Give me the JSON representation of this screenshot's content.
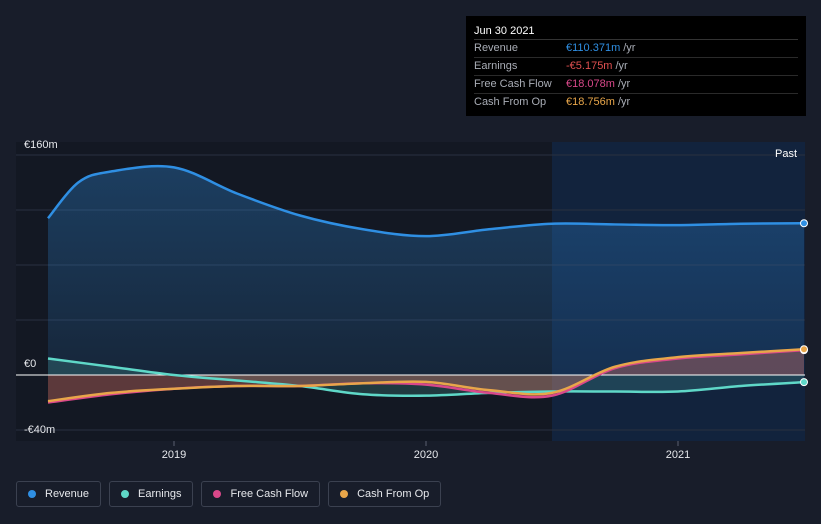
{
  "tooltip": {
    "date": "Jun 30 2021",
    "rows": [
      {
        "label": "Revenue",
        "value": "€110.371m",
        "unit": "/yr",
        "color": "#2f8fe3"
      },
      {
        "label": "Earnings",
        "value": "-€5.175m",
        "unit": "/yr",
        "color": "#e05050"
      },
      {
        "label": "Free Cash Flow",
        "value": "€18.078m",
        "unit": "/yr",
        "color": "#d9488a"
      },
      {
        "label": "Cash From Op",
        "value": "€18.756m",
        "unit": "/yr",
        "color": "#e8a64a"
      }
    ]
  },
  "past_label": "Past",
  "legend": [
    {
      "label": "Revenue",
      "color": "#2f8fe3"
    },
    {
      "label": "Earnings",
      "color": "#5fd8c8"
    },
    {
      "label": "Free Cash Flow",
      "color": "#d9488a"
    },
    {
      "label": "Cash From Op",
      "color": "#e8a64a"
    }
  ],
  "chart_data": {
    "type": "line",
    "ylim": [
      -40,
      160
    ],
    "y_tick_labels": [
      {
        "value": 160,
        "label": "€160m"
      },
      {
        "value": 0,
        "label": "€0"
      },
      {
        "value": -40,
        "label": "-€40m"
      }
    ],
    "x_tick_labels": [
      {
        "value": 2019.0,
        "label": "2019"
      },
      {
        "value": 2020.0,
        "label": "2020"
      },
      {
        "value": 2021.0,
        "label": "2021"
      }
    ],
    "xlim": [
      2018.5,
      2021.5
    ],
    "past_region_start": 2020.5,
    "series": [
      {
        "name": "Revenue",
        "color": "#2f8fe3",
        "points": [
          [
            2018.5,
            114
          ],
          [
            2018.62,
            140
          ],
          [
            2018.75,
            148
          ],
          [
            2019.0,
            151
          ],
          [
            2019.25,
            132
          ],
          [
            2019.5,
            116
          ],
          [
            2019.75,
            106
          ],
          [
            2020.0,
            101
          ],
          [
            2020.25,
            106
          ],
          [
            2020.5,
            110
          ],
          [
            2020.75,
            109.5
          ],
          [
            2021.0,
            109
          ],
          [
            2021.25,
            110
          ],
          [
            2021.5,
            110.371
          ]
        ]
      },
      {
        "name": "Earnings",
        "color": "#5fd8c8",
        "points": [
          [
            2018.5,
            12
          ],
          [
            2018.75,
            6
          ],
          [
            2019.0,
            0
          ],
          [
            2019.25,
            -4
          ],
          [
            2019.5,
            -8
          ],
          [
            2019.75,
            -14
          ],
          [
            2020.0,
            -15
          ],
          [
            2020.25,
            -13
          ],
          [
            2020.5,
            -12
          ],
          [
            2020.75,
            -12
          ],
          [
            2021.0,
            -12
          ],
          [
            2021.25,
            -8
          ],
          [
            2021.5,
            -5.175
          ]
        ]
      },
      {
        "name": "Free Cash Flow",
        "color": "#d9488a",
        "points": [
          [
            2018.5,
            -20
          ],
          [
            2018.75,
            -14
          ],
          [
            2019.0,
            -10
          ],
          [
            2019.25,
            -8
          ],
          [
            2019.5,
            -8
          ],
          [
            2019.75,
            -6
          ],
          [
            2020.0,
            -7
          ],
          [
            2020.25,
            -13
          ],
          [
            2020.5,
            -15
          ],
          [
            2020.75,
            5
          ],
          [
            2021.0,
            12
          ],
          [
            2021.25,
            15
          ],
          [
            2021.5,
            18.078
          ]
        ]
      },
      {
        "name": "Cash From Op",
        "color": "#e8a64a",
        "points": [
          [
            2018.5,
            -19
          ],
          [
            2018.75,
            -13
          ],
          [
            2019.0,
            -10
          ],
          [
            2019.25,
            -8
          ],
          [
            2019.5,
            -8
          ],
          [
            2019.75,
            -6
          ],
          [
            2020.0,
            -5
          ],
          [
            2020.25,
            -11
          ],
          [
            2020.5,
            -13
          ],
          [
            2020.75,
            6
          ],
          [
            2021.0,
            13
          ],
          [
            2021.25,
            16
          ],
          [
            2021.5,
            18.756
          ]
        ]
      }
    ]
  }
}
